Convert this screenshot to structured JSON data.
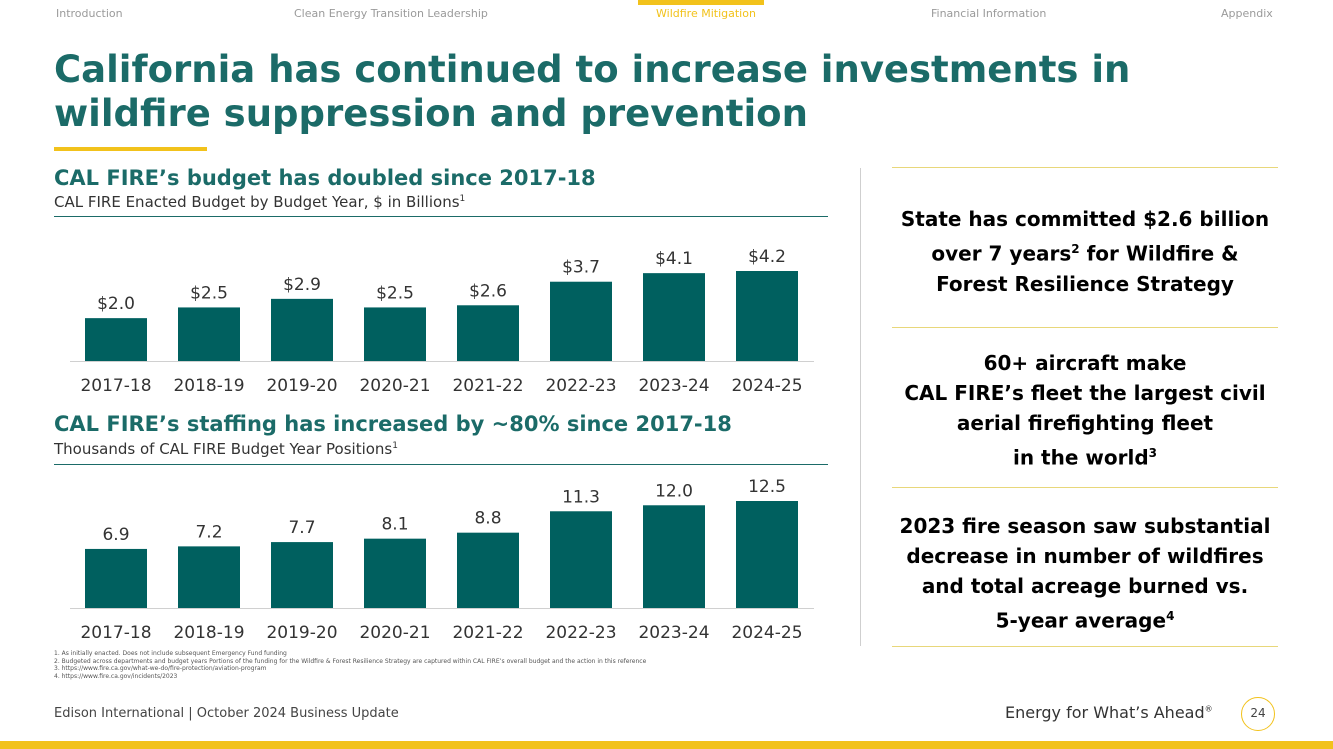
{
  "nav": {
    "items": [
      "Introduction",
      "Clean Energy Transition Leadership",
      "Wildfire Mitigation",
      "Financial Information",
      "Appendix"
    ],
    "active": "Wildfire Mitigation"
  },
  "title": "California has continued to increase investments in wildfire suppression and prevention",
  "budget": {
    "heading": "CAL FIRE’s budget has doubled since 2017-18",
    "subtitle": "CAL FIRE Enacted Budget by Budget Year, $ in Billions",
    "subtitle_note": "1"
  },
  "staffing": {
    "heading": "CAL FIRE’s staffing has increased by ~80% since 2017-18",
    "subtitle": "Thousands of CAL FIRE Budget Year Positions",
    "subtitle_note": "1"
  },
  "chart_data": [
    {
      "type": "bar",
      "title": "CAL FIRE Enacted Budget by Budget Year, $ in Billions",
      "categories": [
        "2017-18",
        "2018-19",
        "2019-20",
        "2020-21",
        "2021-22",
        "2022-23",
        "2023-24",
        "2024-25"
      ],
      "values": [
        2.0,
        2.5,
        2.9,
        2.5,
        2.6,
        3.7,
        4.1,
        4.2
      ],
      "labels": [
        "$2.0",
        "$2.5",
        "$2.9",
        "$2.5",
        "$2.6",
        "$3.7",
        "$4.1",
        "$4.2"
      ],
      "xlabel": "",
      "ylabel": "",
      "ylim": [
        0,
        4.2
      ],
      "color": "#00605f"
    },
    {
      "type": "bar",
      "title": "Thousands of CAL FIRE Budget Year Positions",
      "categories": [
        "2017-18",
        "2018-19",
        "2019-20",
        "2020-21",
        "2021-22",
        "2022-23",
        "2023-24",
        "2024-25"
      ],
      "values": [
        6.9,
        7.2,
        7.7,
        8.1,
        8.8,
        11.3,
        12.0,
        12.5
      ],
      "labels": [
        "6.9",
        "7.2",
        "7.7",
        "8.1",
        "8.8",
        "11.3",
        "12.0",
        "12.5"
      ],
      "xlabel": "",
      "ylabel": "",
      "ylim": [
        0,
        12.5
      ],
      "color": "#00605f"
    }
  ],
  "stats": [
    {
      "lines": [
        "State has committed $2.6 billion",
        "over 7 years",
        "2",
        " for Wildfire &",
        "Forest Resilience Strategy"
      ]
    },
    {
      "lines": [
        "60+ aircraft make",
        "CAL FIRE’s fleet the largest civil",
        "aerial firefighting fleet",
        "in the world",
        "3"
      ]
    },
    {
      "lines": [
        "2023 fire season saw substantial",
        "decrease in number of wildfires",
        "and total acreage burned vs.",
        "5-year average",
        "4"
      ]
    }
  ],
  "footnotes": [
    "1.  As initially enacted. Does not include subsequent Emergency Fund funding",
    "2.  Budgeted across departments and budget years Portions of the funding for the Wildfire & Forest Resilience Strategy are captured within CAL FIRE’s overall budget and the action in this reference",
    "3.  https://www.fire.ca.gov/what-we-do/fire-protection/aviation-program",
    "4.  https://www.fire.ca.gov/incidents/2023"
  ],
  "footer": {
    "left": "Edison International | October 2024 Business Update",
    "tagline": "Energy for What’s Ahead",
    "tagline_mark": "®",
    "page": "24"
  }
}
